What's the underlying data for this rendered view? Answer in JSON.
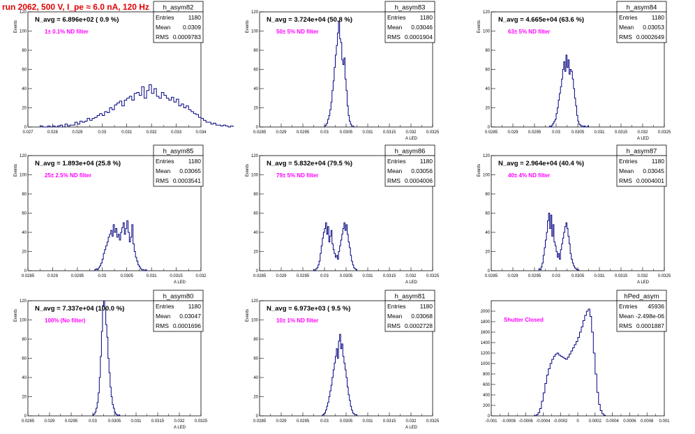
{
  "page": {
    "title": "run 2062,   500 V, I_pe ≈ 6.0 nA, 120 Hz",
    "title_color": "#e00000",
    "annotation_color": "#ff00ff",
    "line_color": "#000080"
  },
  "stat_labels": {
    "entries": "Entries",
    "mean": "Mean",
    "rms": "RMS"
  },
  "chart_data": [
    {
      "type": "histogram",
      "name": "h_asym82",
      "header": "N_avg = 6.896e+02 ( 0.9 %)",
      "filter": "1± 0.1% ND filter",
      "stats": {
        "entries": "1180",
        "mean": "0.0309",
        "rms": "0.0009783"
      },
      "ylabel": "Events",
      "xlabel": "",
      "xlim": [
        0.027,
        0.034
      ],
      "ylim": [
        0,
        120
      ],
      "xticks": [
        "0.027",
        "0.028",
        "0.029",
        "0.03",
        "0.031",
        "0.032",
        "0.033",
        "0.034"
      ],
      "yticks": [
        "0",
        "20",
        "40",
        "60",
        "80",
        "100",
        "120"
      ],
      "bins": {
        "start": 0.0275,
        "width": 0.0001,
        "values": [
          1,
          0,
          0,
          1,
          0,
          1,
          0,
          1,
          2,
          0,
          3,
          1,
          2,
          2,
          5,
          3,
          6,
          5,
          6,
          9,
          7,
          9,
          10,
          12,
          14,
          12,
          16,
          15,
          20,
          18,
          23,
          25,
          27,
          22,
          28,
          30,
          32,
          28,
          35,
          36,
          33,
          42,
          30,
          38,
          44,
          35,
          40,
          32,
          30,
          36,
          33,
          30,
          28,
          31,
          26,
          29,
          22,
          24,
          20,
          22,
          18,
          16,
          14,
          13,
          10,
          9,
          7,
          5,
          5,
          3,
          4,
          2,
          2,
          1,
          2,
          1,
          0,
          1
        ]
      }
    },
    {
      "type": "histogram",
      "name": "h_asym83",
      "header": "N_avg = 3.724e+04 (50.8 %)",
      "filter": "50± 5% ND filter",
      "stats": {
        "entries": "1180",
        "mean": "0.03046",
        "rms": "0.0001904"
      },
      "ylabel": "Events",
      "xlabel": "A LED",
      "xlim": [
        0.0285,
        0.0325
      ],
      "ylim": [
        0,
        120
      ],
      "xticks": [
        "0.0285",
        "0.029",
        "0.0295",
        "0.03",
        "0.0305",
        "0.031",
        "0.0315",
        "0.032",
        "0.0325"
      ],
      "yticks": [
        "0",
        "20",
        "40",
        "60",
        "80",
        "100",
        "120"
      ],
      "bins": {
        "start": 0.03,
        "width": 2.5e-05,
        "values": [
          1,
          2,
          4,
          8,
          12,
          18,
          26,
          38,
          48,
          62,
          75,
          85,
          98,
          110,
          92,
          88,
          70,
          65,
          72,
          50,
          38,
          22,
          12,
          6,
          3,
          1,
          1,
          0
        ]
      }
    },
    {
      "type": "histogram",
      "name": "h_asym84",
      "header": "N_avg = 4.665e+04 (63.6 %)",
      "filter": "63± 5% ND filter",
      "stats": {
        "entries": "1180",
        "mean": "0.03053",
        "rms": "0.0002649"
      },
      "ylabel": "Events",
      "xlabel": "A LED",
      "xlim": [
        0.0285,
        0.0325
      ],
      "ylim": [
        0,
        120
      ],
      "xticks": [
        "0.0285",
        "0.029",
        "0.0295",
        "0.03",
        "0.0305",
        "0.031",
        "0.0315",
        "0.032",
        "0.0325"
      ],
      "yticks": [
        "0",
        "20",
        "40",
        "60",
        "80",
        "100",
        "120"
      ],
      "bins": {
        "start": 0.02985,
        "width": 2.5e-05,
        "values": [
          1,
          0,
          2,
          4,
          6,
          8,
          14,
          20,
          28,
          35,
          42,
          50,
          60,
          68,
          58,
          75,
          62,
          70,
          55,
          60,
          58,
          50,
          40,
          30,
          22,
          12,
          6,
          3,
          2,
          1,
          1,
          0,
          1,
          0,
          0,
          1
        ]
      }
    },
    {
      "type": "histogram",
      "name": "h_asym85",
      "header": "N_avg = 1.893e+04 (25.8 %)",
      "filter": "25± 2.5% ND filter",
      "stats": {
        "entries": "1180",
        "mean": "0.03065",
        "rms": "0.0003541"
      },
      "ylabel": "Events",
      "xlabel": "A LED",
      "xlim": [
        0.0285,
        0.032
      ],
      "ylim": [
        0,
        120
      ],
      "xticks": [
        "0.0285",
        "0.029",
        "0.0295",
        "0.03",
        "0.0305",
        "0.031",
        "0.0315",
        "0.032"
      ],
      "yticks": [
        "0",
        "20",
        "40",
        "60",
        "80",
        "100",
        "120"
      ],
      "bins": {
        "start": 0.02985,
        "width": 2.5e-05,
        "values": [
          1,
          2,
          1,
          3,
          5,
          8,
          12,
          18,
          22,
          26,
          30,
          35,
          38,
          42,
          36,
          48,
          40,
          44,
          35,
          38,
          32,
          40,
          45,
          50,
          38,
          44,
          52,
          40,
          30,
          35,
          48,
          28,
          20,
          14,
          10,
          6,
          4,
          2,
          1,
          1,
          0,
          1
        ]
      }
    },
    {
      "type": "histogram",
      "name": "h_asym86",
      "header": "N_avg = 5.832e+04 (79.5 %)",
      "filter": "79± 5% ND filter",
      "stats": {
        "entries": "1180",
        "mean": "0.03056",
        "rms": "0.0004006"
      },
      "ylabel": "Events",
      "xlabel": "A LED",
      "xlim": [
        0.0285,
        0.0325
      ],
      "ylim": [
        0,
        120
      ],
      "xticks": [
        "0.0285",
        "0.029",
        "0.0295",
        "0.03",
        "0.0305",
        "0.031",
        "0.0315",
        "0.032",
        "0.0325"
      ],
      "yticks": [
        "0",
        "20",
        "40",
        "60",
        "80",
        "100",
        "120"
      ],
      "bins": {
        "start": 0.02975,
        "width": 2.5e-05,
        "values": [
          1,
          0,
          2,
          3,
          6,
          10,
          18,
          26,
          34,
          40,
          44,
          50,
          38,
          46,
          30,
          36,
          42,
          28,
          22,
          18,
          14,
          16,
          12,
          20,
          26,
          32,
          38,
          44,
          50,
          42,
          48,
          38,
          30,
          24,
          16,
          10,
          6,
          3,
          2,
          1
        ]
      }
    },
    {
      "type": "histogram",
      "name": "h_asym87",
      "header": "N_avg = 2.964e+04 (40.4 %)",
      "filter": "40± 4% ND filter",
      "stats": {
        "entries": "1180",
        "mean": "0.03045",
        "rms": "0.0004001"
      },
      "ylabel": "Events",
      "xlabel": "A LED",
      "xlim": [
        0.0285,
        0.0325
      ],
      "ylim": [
        0,
        120
      ],
      "xticks": [
        "0.0285",
        "0.029",
        "0.0295",
        "0.03",
        "0.0305",
        "0.031",
        "0.0315",
        "0.032",
        "0.0325"
      ],
      "yticks": [
        "0",
        "20",
        "40",
        "60",
        "80",
        "100",
        "120"
      ],
      "bins": {
        "start": 0.0296,
        "width": 2.5e-05,
        "values": [
          2,
          1,
          4,
          8,
          16,
          24,
          32,
          40,
          52,
          60,
          44,
          58,
          36,
          48,
          30,
          26,
          20,
          14,
          18,
          12,
          22,
          28,
          34,
          40,
          46,
          50,
          44,
          36,
          28,
          18,
          12,
          8,
          5,
          3,
          2,
          1,
          1
        ]
      }
    },
    {
      "type": "histogram",
      "name": "h_asym80",
      "header": "N_avg = 7.337e+04 (100.0 %)",
      "filter": "100% (No filter)",
      "stats": {
        "entries": "1180",
        "mean": "0.03047",
        "rms": "0.0001696"
      },
      "ylabel": "Events",
      "xlabel": "A LED",
      "xlim": [
        0.0285,
        0.0325
      ],
      "ylim": [
        0,
        120
      ],
      "xticks": [
        "0.0285",
        "0.029",
        "0.0295",
        "0.03",
        "0.0305",
        "0.031",
        "0.0315",
        "0.032",
        "0.0325"
      ],
      "yticks": [
        "0",
        "20",
        "40",
        "60",
        "80",
        "100",
        "120"
      ],
      "bins": {
        "start": 0.03,
        "width": 2.5e-05,
        "values": [
          1,
          2,
          4,
          8,
          14,
          24,
          40,
          62,
          88,
          115,
          130,
          112,
          95,
          82,
          60,
          45,
          30,
          20,
          12,
          8,
          4,
          2,
          1,
          0,
          1
        ]
      }
    },
    {
      "type": "histogram",
      "name": "h_asym81",
      "header": "N_avg = 6.973e+03 ( 9.5 %)",
      "filter": "10± 1% ND filter",
      "stats": {
        "entries": "1180",
        "mean": "0.03068",
        "rms": "0.0002728"
      },
      "ylabel": "Events",
      "xlabel": "A LED",
      "xlim": [
        0.0285,
        0.0325
      ],
      "ylim": [
        0,
        120
      ],
      "xticks": [
        "0.0285",
        "0.029",
        "0.0295",
        "0.03",
        "0.0305",
        "0.031",
        "0.0315",
        "0.032",
        "0.0325"
      ],
      "yticks": [
        "0",
        "20",
        "40",
        "60",
        "80",
        "100",
        "120"
      ],
      "bins": {
        "start": 0.02995,
        "width": 2.5e-05,
        "values": [
          1,
          2,
          3,
          6,
          10,
          14,
          20,
          26,
          32,
          40,
          48,
          55,
          62,
          70,
          60,
          78,
          85,
          70,
          75,
          62,
          55,
          48,
          40,
          30,
          22,
          16,
          10,
          6,
          3,
          2,
          1,
          1
        ]
      }
    },
    {
      "type": "histogram",
      "name": "hPed_asym",
      "header": "",
      "filter": "Shutter Closed",
      "stats": {
        "entries": "45936",
        "mean": "-2.498e-06",
        "rms": "0.0001887"
      },
      "ylabel": "",
      "xlabel": "",
      "xlim": [
        -0.001,
        0.001
      ],
      "ylim": [
        0,
        2200
      ],
      "xticks": [
        "-0.001",
        "-0.0008",
        "-0.0006",
        "-0.0004",
        "-0.0002",
        "0",
        "0.0002",
        "0.0004",
        "0.0006",
        "0.0008",
        "0.001"
      ],
      "yticks": [
        "0",
        "200",
        "400",
        "600",
        "800",
        "1000",
        "1200",
        "1400",
        "1600",
        "1800",
        "2000"
      ],
      "bins": {
        "start": -0.0005,
        "width": 2e-05,
        "values": [
          5,
          20,
          60,
          140,
          280,
          440,
          620,
          780,
          900,
          1000,
          1080,
          1140,
          1180,
          1200,
          1160,
          1140,
          1120,
          1100,
          1080,
          1120,
          1180,
          1240,
          1300,
          1360,
          1420,
          1500,
          1600,
          1700,
          1820,
          1920,
          2000,
          2040,
          1900,
          1600,
          1200,
          800,
          450,
          220,
          100,
          40,
          12
        ]
      }
    }
  ]
}
